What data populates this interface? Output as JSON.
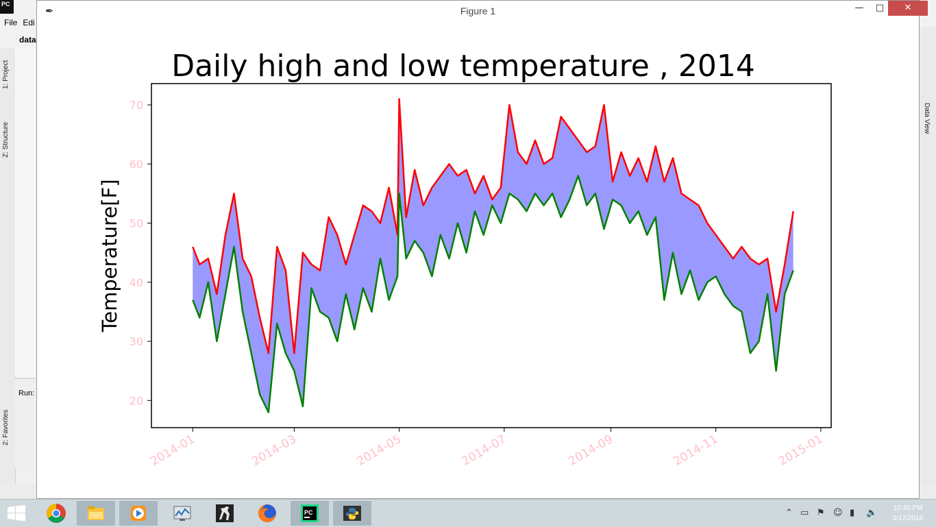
{
  "ide": {
    "menu": [
      "File",
      "Edi"
    ],
    "project_label": "data",
    "tabs": [
      "1: Project",
      "Z: Structure",
      "2: Favorites"
    ],
    "run_label": "Run:",
    "right_tab": "Data View"
  },
  "window": {
    "title": "Figure 1",
    "minimize": "—",
    "maximize": "□",
    "close": "✕"
  },
  "taskbar": {
    "apps": [
      "chrome-icon",
      "file-explorer-icon",
      "media-player-icon",
      "task-monitor-icon",
      "counter-strike-icon",
      "firefox-icon",
      "pycharm-icon",
      "python-icon"
    ],
    "clock_time": "10:40 PM",
    "clock_date": "2/17/2018"
  },
  "chart_data": {
    "type": "line",
    "title": "Daily high and low temperature , 2014",
    "xlabel": "",
    "ylabel": "Temperature[F]",
    "x_tick_labels": [
      "2014-01",
      "2014-03",
      "2014-05",
      "2014-07",
      "2014-09",
      "2014-11",
      "2015-01"
    ],
    "y_ticks": [
      20,
      30,
      40,
      50,
      60,
      70
    ],
    "ylim": [
      15.4,
      73.6
    ],
    "xlim": [
      "2013-12-08",
      "2015-01-07"
    ],
    "grid": false,
    "tick_label_color": "#ffc0cb",
    "fill_color": "#9999ff",
    "series": [
      {
        "color": "#ff0000",
        "x": [
          "2014-01-01",
          "2014-01-05",
          "2014-01-10",
          "2014-01-15",
          "2014-01-20",
          "2014-01-25",
          "2014-01-30",
          "2014-02-04",
          "2014-02-09",
          "2014-02-14",
          "2014-02-19",
          "2014-02-24",
          "2014-03-01",
          "2014-03-06",
          "2014-03-11",
          "2014-03-16",
          "2014-03-21",
          "2014-03-26",
          "2014-03-31",
          "2014-04-05",
          "2014-04-10",
          "2014-04-15",
          "2014-04-20",
          "2014-04-25",
          "2014-04-30",
          "2014-05-01",
          "2014-05-05",
          "2014-05-10",
          "2014-05-15",
          "2014-05-20",
          "2014-05-25",
          "2014-05-30",
          "2014-06-04",
          "2014-06-09",
          "2014-06-14",
          "2014-06-19",
          "2014-06-24",
          "2014-06-29",
          "2014-07-04",
          "2014-07-09",
          "2014-07-14",
          "2014-07-19",
          "2014-07-24",
          "2014-07-29",
          "2014-08-03",
          "2014-08-08",
          "2014-08-13",
          "2014-08-18",
          "2014-08-23",
          "2014-08-28",
          "2014-09-02",
          "2014-09-07",
          "2014-09-12",
          "2014-09-17",
          "2014-09-22",
          "2014-09-27",
          "2014-10-02",
          "2014-10-07",
          "2014-10-12",
          "2014-10-17",
          "2014-10-22",
          "2014-10-27",
          "2014-11-01",
          "2014-11-06",
          "2014-11-11",
          "2014-11-16",
          "2014-11-21",
          "2014-11-26",
          "2014-12-01",
          "2014-12-06",
          "2014-12-11",
          "2014-12-16"
        ],
        "values": [
          46,
          43,
          44,
          38,
          48,
          55,
          44,
          41,
          34,
          28,
          46,
          42,
          28,
          45,
          43,
          42,
          51,
          48,
          43,
          48,
          53,
          52,
          50,
          56,
          48,
          71,
          51,
          59,
          53,
          56,
          58,
          60,
          58,
          59,
          55,
          58,
          54,
          56,
          70,
          62,
          60,
          64,
          60,
          61,
          68,
          66,
          64,
          62,
          63,
          70,
          57,
          62,
          58,
          61,
          57,
          63,
          57,
          61,
          55,
          54,
          53,
          50,
          48,
          46,
          44,
          46,
          44,
          43,
          44,
          35,
          43,
          52
        ]
      },
      {
        "color": "#008000",
        "x": [
          "2014-01-01",
          "2014-01-05",
          "2014-01-10",
          "2014-01-15",
          "2014-01-20",
          "2014-01-25",
          "2014-01-30",
          "2014-02-04",
          "2014-02-09",
          "2014-02-14",
          "2014-02-19",
          "2014-02-24",
          "2014-03-01",
          "2014-03-06",
          "2014-03-11",
          "2014-03-16",
          "2014-03-21",
          "2014-03-26",
          "2014-03-31",
          "2014-04-05",
          "2014-04-10",
          "2014-04-15",
          "2014-04-20",
          "2014-04-25",
          "2014-04-30",
          "2014-05-01",
          "2014-05-05",
          "2014-05-10",
          "2014-05-15",
          "2014-05-20",
          "2014-05-25",
          "2014-05-30",
          "2014-06-04",
          "2014-06-09",
          "2014-06-14",
          "2014-06-19",
          "2014-06-24",
          "2014-06-29",
          "2014-07-04",
          "2014-07-09",
          "2014-07-14",
          "2014-07-19",
          "2014-07-24",
          "2014-07-29",
          "2014-08-03",
          "2014-08-08",
          "2014-08-13",
          "2014-08-18",
          "2014-08-23",
          "2014-08-28",
          "2014-09-02",
          "2014-09-07",
          "2014-09-12",
          "2014-09-17",
          "2014-09-22",
          "2014-09-27",
          "2014-10-02",
          "2014-10-07",
          "2014-10-12",
          "2014-10-17",
          "2014-10-22",
          "2014-10-27",
          "2014-11-01",
          "2014-11-06",
          "2014-11-11",
          "2014-11-16",
          "2014-11-21",
          "2014-11-26",
          "2014-12-01",
          "2014-12-06",
          "2014-12-11",
          "2014-12-16"
        ],
        "values": [
          37,
          34,
          40,
          30,
          38,
          46,
          35,
          28,
          21,
          18,
          33,
          28,
          25,
          19,
          39,
          35,
          34,
          30,
          38,
          32,
          39,
          35,
          44,
          37,
          41,
          55,
          44,
          47,
          45,
          41,
          48,
          44,
          50,
          45,
          52,
          48,
          53,
          50,
          55,
          54,
          52,
          55,
          53,
          55,
          51,
          54,
          58,
          53,
          55,
          49,
          54,
          53,
          50,
          52,
          48,
          51,
          37,
          45,
          38,
          42,
          37,
          40,
          41,
          38,
          36,
          35,
          28,
          30,
          38,
          25,
          38,
          42
        ]
      }
    ]
  }
}
